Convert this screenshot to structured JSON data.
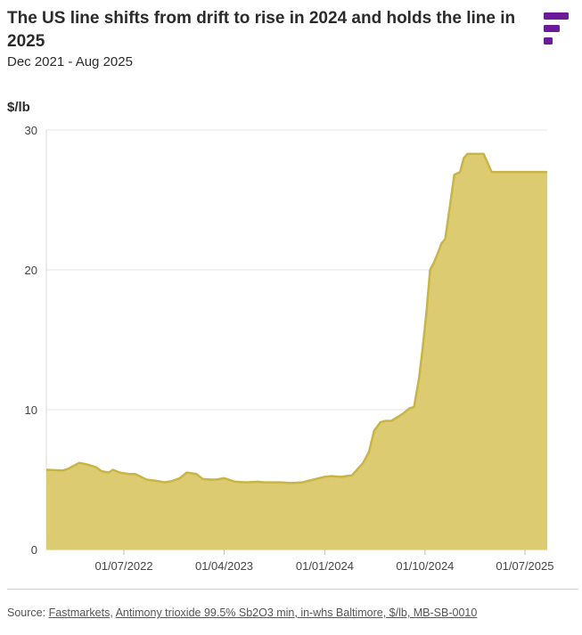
{
  "header": {
    "title": "The US line shifts from drift to rise in 2024 and holds the line in 2025",
    "subtitle": "Dec 2021 - Aug 2025",
    "unit_label": "$/lb"
  },
  "footer": {
    "source_prefix": "Source: ",
    "source_publisher": "Fastmarkets",
    "source_sep": ", ",
    "source_series": "Antimony trioxide 99.5% Sb2O3 min, in-whs Baltimore, $/lb, MB-SB-0010"
  },
  "colors": {
    "fill": "#ddcb72",
    "line": "#c8b545",
    "grid": "#e6e6e6",
    "logo": "#6a1b9a"
  },
  "logo": {
    "icon": "fastmarkets-logo-icon"
  },
  "chart_data": {
    "type": "area",
    "title": "The US line shifts from drift to rise in 2024 and holds the line in 2025",
    "subtitle": "Dec 2021 - Aug 2025",
    "ylabel": "$/lb",
    "xlabel": "",
    "ylim": [
      0,
      30
    ],
    "xlim": [
      "2021-12-01",
      "2025-08-31"
    ],
    "yticks": [
      0,
      10,
      20,
      30
    ],
    "xticks": [
      "01/07/2022",
      "01/04/2023",
      "01/01/2024",
      "01/10/2024",
      "01/07/2025"
    ],
    "grid": true,
    "legend": "none",
    "series": [
      {
        "x": [
          "2021-12-01",
          "2022-01-15",
          "2022-02-01",
          "2022-03-01",
          "2022-03-20",
          "2022-04-15",
          "2022-05-01",
          "2022-05-20",
          "2022-06-01",
          "2022-06-20",
          "2022-07-01",
          "2022-07-15",
          "2022-08-01",
          "2022-09-01",
          "2022-10-01",
          "2022-10-20",
          "2022-11-10",
          "2022-12-01",
          "2022-12-20",
          "2023-01-15",
          "2023-02-01",
          "2023-02-20",
          "2023-03-10",
          "2023-04-01",
          "2023-05-01",
          "2023-06-01",
          "2023-07-01",
          "2023-07-20",
          "2023-09-01",
          "2023-10-01",
          "2023-11-01",
          "2023-12-01",
          "2024-01-01",
          "2024-01-20",
          "2024-02-15",
          "2024-03-15",
          "2024-04-15",
          "2024-05-01",
          "2024-05-15",
          "2024-06-01",
          "2024-06-15",
          "2024-07-01",
          "2024-08-01",
          "2024-08-20",
          "2024-09-01",
          "2024-09-15",
          "2024-09-25",
          "2024-10-05",
          "2024-10-15",
          "2024-10-25",
          "2024-11-05",
          "2024-11-15",
          "2024-11-25",
          "2024-12-05",
          "2024-12-20",
          "2025-01-05",
          "2025-01-15",
          "2025-01-25",
          "2025-02-05",
          "2025-02-15",
          "2025-02-25",
          "2025-03-10",
          "2025-04-01",
          "2025-04-15",
          "2025-05-01",
          "2025-08-31"
        ],
        "values": [
          5.7,
          5.65,
          5.8,
          6.2,
          6.1,
          5.9,
          5.6,
          5.5,
          5.7,
          5.5,
          5.45,
          5.4,
          5.4,
          5.0,
          4.9,
          4.8,
          4.9,
          5.1,
          5.5,
          5.4,
          5.05,
          5.0,
          5.0,
          5.1,
          4.85,
          4.8,
          4.85,
          4.8,
          4.8,
          4.75,
          4.8,
          5.0,
          5.2,
          5.25,
          5.2,
          5.3,
          6.2,
          7.0,
          8.5,
          9.1,
          9.2,
          9.2,
          9.7,
          10.1,
          10.2,
          12.3,
          14.5,
          17.0,
          20.0,
          20.5,
          21.2,
          21.9,
          22.2,
          24.0,
          26.8,
          27.0,
          28.0,
          28.3,
          28.3,
          28.3,
          28.3,
          28.3,
          27.0,
          27.0,
          27.0,
          27.0
        ]
      }
    ]
  }
}
